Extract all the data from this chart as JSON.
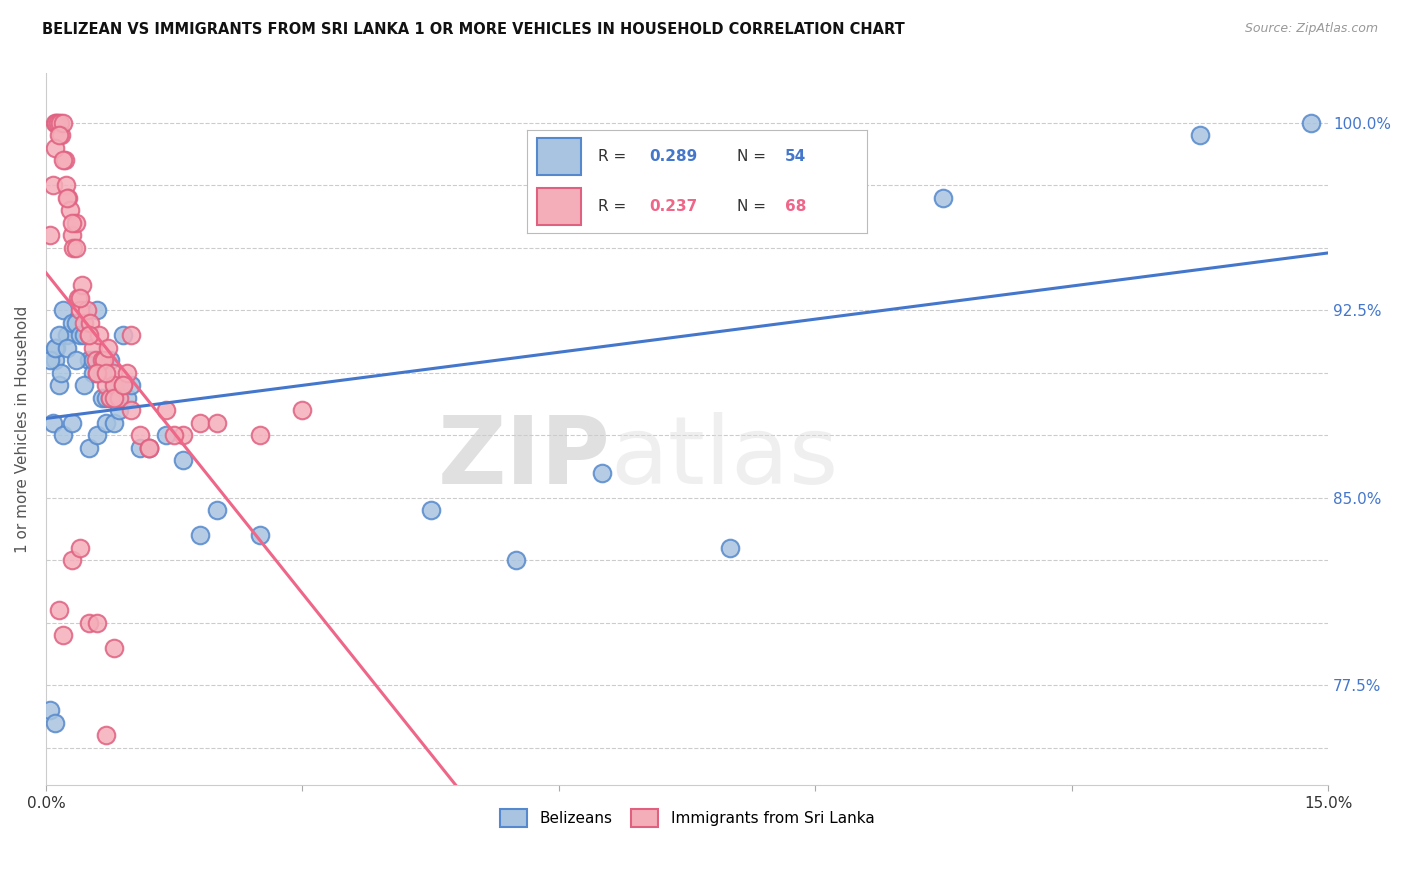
{
  "title": "BELIZEAN VS IMMIGRANTS FROM SRI LANKA 1 OR MORE VEHICLES IN HOUSEHOLD CORRELATION CHART",
  "source": "Source: ZipAtlas.com",
  "ylabel": "1 or more Vehicles in Household",
  "y_positions": [
    75.0,
    77.5,
    80.0,
    82.5,
    85.0,
    87.5,
    90.0,
    92.5,
    95.0,
    97.5,
    100.0
  ],
  "y_labels_right": [
    "",
    "77.5%",
    "",
    "",
    "85.0%",
    "",
    "",
    "92.5%",
    "",
    "",
    "100.0%"
  ],
  "x_min": 0.0,
  "x_max": 15.0,
  "y_min": 73.5,
  "y_max": 102.0,
  "blue_R": 0.289,
  "blue_N": 54,
  "pink_R": 0.237,
  "pink_N": 68,
  "legend_label_blue": "Belizeans",
  "legend_label_pink": "Immigrants from Sri Lanka",
  "blue_color": "#A8C4E0",
  "pink_color": "#F4AEBA",
  "blue_edge_color": "#5588CC",
  "pink_edge_color": "#E06080",
  "blue_line_color": "#4477CC",
  "pink_line_color": "#EE6688",
  "watermark_zip": "ZIP",
  "watermark_atlas": "atlas",
  "blue_x": [
    0.05,
    0.08,
    0.1,
    0.12,
    0.15,
    0.18,
    0.2,
    0.25,
    0.3,
    0.35,
    0.4,
    0.45,
    0.5,
    0.55,
    0.6,
    0.65,
    0.7,
    0.75,
    0.8,
    0.85,
    0.9,
    0.95,
    1.0,
    1.1,
    1.2,
    1.4,
    1.6,
    1.8,
    2.0,
    2.5,
    0.1,
    0.2,
    0.3,
    0.5,
    0.6,
    0.7,
    0.8,
    4.5,
    5.5,
    6.5,
    8.0,
    10.5,
    13.5,
    14.8,
    0.05,
    0.1,
    0.15,
    0.25,
    0.35,
    0.45,
    0.55,
    0.65,
    0.75,
    0.85
  ],
  "blue_y": [
    76.5,
    88.0,
    90.5,
    91.0,
    89.5,
    90.0,
    92.5,
    91.5,
    92.0,
    92.0,
    91.5,
    91.5,
    90.5,
    90.0,
    92.5,
    89.0,
    89.0,
    90.5,
    89.0,
    89.5,
    91.5,
    89.0,
    89.5,
    87.0,
    87.0,
    87.5,
    86.5,
    83.5,
    84.5,
    83.5,
    76.0,
    87.5,
    88.0,
    87.0,
    87.5,
    88.0,
    88.0,
    84.5,
    82.5,
    86.0,
    83.0,
    97.0,
    99.5,
    100.0,
    90.5,
    91.0,
    91.5,
    91.0,
    90.5,
    89.5,
    90.5,
    90.0,
    89.0,
    88.5
  ],
  "pink_x": [
    0.05,
    0.08,
    0.1,
    0.12,
    0.14,
    0.16,
    0.18,
    0.2,
    0.22,
    0.24,
    0.26,
    0.28,
    0.3,
    0.32,
    0.35,
    0.38,
    0.4,
    0.42,
    0.45,
    0.48,
    0.5,
    0.52,
    0.55,
    0.58,
    0.6,
    0.62,
    0.65,
    0.68,
    0.7,
    0.72,
    0.75,
    0.78,
    0.8,
    0.85,
    0.9,
    0.95,
    1.0,
    1.1,
    1.2,
    1.4,
    1.6,
    1.8,
    0.1,
    0.15,
    0.2,
    0.25,
    0.3,
    0.35,
    0.4,
    0.5,
    0.6,
    0.7,
    0.8,
    0.9,
    1.0,
    1.2,
    1.5,
    2.0,
    2.5,
    3.0,
    0.15,
    0.2,
    0.3,
    0.4,
    0.5,
    0.6,
    0.7,
    0.8
  ],
  "pink_y": [
    95.5,
    97.5,
    100.0,
    100.0,
    100.0,
    100.0,
    99.5,
    100.0,
    98.5,
    97.5,
    97.0,
    96.5,
    95.5,
    95.0,
    96.0,
    93.0,
    92.5,
    93.5,
    92.0,
    92.5,
    91.5,
    92.0,
    91.0,
    90.5,
    90.0,
    91.5,
    90.5,
    90.5,
    89.5,
    91.0,
    89.0,
    90.0,
    89.5,
    89.0,
    89.5,
    90.0,
    91.5,
    87.5,
    87.0,
    88.5,
    87.5,
    88.0,
    99.0,
    99.5,
    98.5,
    97.0,
    96.0,
    95.0,
    93.0,
    91.5,
    90.0,
    90.0,
    89.0,
    89.5,
    88.5,
    87.0,
    87.5,
    88.0,
    87.5,
    88.5,
    80.5,
    79.5,
    82.5,
    83.0,
    80.0,
    80.0,
    75.5,
    79.0
  ]
}
